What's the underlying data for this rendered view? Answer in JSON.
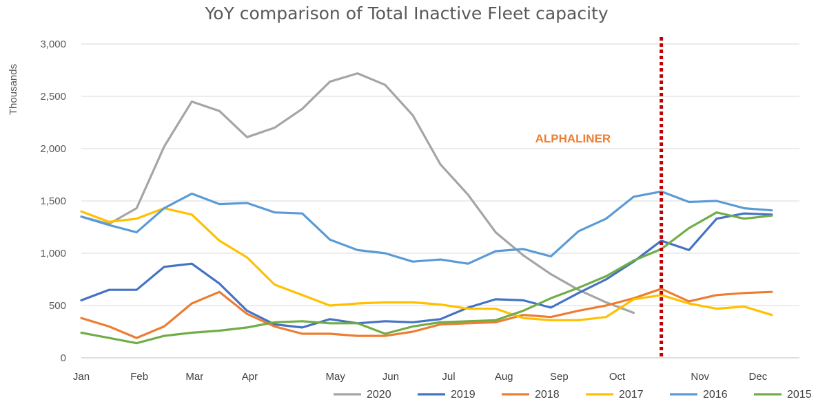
{
  "chart_data": {
    "type": "line",
    "title": "YoY comparison of Total Inactive Fleet capacity",
    "ylabel": "Thousands",
    "xlabel": "",
    "ylim": [
      0,
      3000
    ],
    "yticks": [
      0,
      500,
      1000,
      1500,
      2000,
      2500,
      3000
    ],
    "ytick_labels": [
      "0",
      "500",
      "1,000",
      "1,500",
      "2,000",
      "2,500",
      "3,000"
    ],
    "x_range": [
      1,
      27
    ],
    "month_ticks": [
      {
        "label": "Jan",
        "x": 1
      },
      {
        "label": "Feb",
        "x": 3.1
      },
      {
        "label": "Mar",
        "x": 5.1
      },
      {
        "label": "Apr",
        "x": 7.1
      },
      {
        "label": "May",
        "x": 10.2
      },
      {
        "label": "Jun",
        "x": 12.2
      },
      {
        "label": "Jul",
        "x": 14.3
      },
      {
        "label": "Aug",
        "x": 16.3
      },
      {
        "label": "Sep",
        "x": 18.3
      },
      {
        "label": "Oct",
        "x": 20.4
      },
      {
        "label": "Nov",
        "x": 23.4
      },
      {
        "label": "Dec",
        "x": 25.5
      }
    ],
    "grid": true,
    "legend_position": "bottom",
    "annotation": {
      "text": "ALPHALINER",
      "color": "#ed7d31",
      "x": 18.8,
      "y": 2100
    },
    "marker_line": {
      "x": 22,
      "color": "#c00000",
      "style": "dotted"
    },
    "series": [
      {
        "name": "2020",
        "color": "#a5a5a5",
        "values": [
          1350,
          1280,
          1430,
          2020,
          2450,
          2360,
          2110,
          2200,
          2380,
          2640,
          2720,
          2610,
          2320,
          1850,
          1560,
          1200,
          980,
          800,
          650,
          530,
          430,
          null,
          null,
          null,
          null,
          null,
          null
        ]
      },
      {
        "name": "2019",
        "color": "#4472c4",
        "values": [
          550,
          650,
          650,
          870,
          900,
          710,
          450,
          320,
          290,
          370,
          330,
          350,
          340,
          370,
          480,
          560,
          550,
          480,
          620,
          750,
          920,
          1120,
          1030,
          1330,
          1380,
          1370,
          null
        ]
      },
      {
        "name": "2018",
        "color": "#ed7d31",
        "values": [
          380,
          300,
          190,
          300,
          520,
          630,
          420,
          300,
          230,
          230,
          210,
          210,
          250,
          320,
          330,
          340,
          410,
          390,
          450,
          500,
          570,
          660,
          540,
          600,
          620,
          630,
          null
        ]
      },
      {
        "name": "2017",
        "color": "#ffc000",
        "values": [
          1400,
          1300,
          1330,
          1430,
          1370,
          1120,
          960,
          700,
          600,
          500,
          520,
          530,
          530,
          510,
          470,
          470,
          380,
          360,
          360,
          390,
          560,
          600,
          520,
          470,
          490,
          410,
          null
        ]
      },
      {
        "name": "2016",
        "color": "#5b9bd5",
        "values": [
          1350,
          1270,
          1200,
          1430,
          1570,
          1470,
          1480,
          1390,
          1380,
          1130,
          1030,
          1000,
          920,
          940,
          900,
          1020,
          1040,
          970,
          1210,
          1330,
          1540,
          1590,
          1490,
          1500,
          1430,
          1410,
          null
        ]
      },
      {
        "name": "2015",
        "color": "#70ad47",
        "values": [
          240,
          190,
          140,
          210,
          240,
          260,
          290,
          340,
          350,
          330,
          330,
          230,
          300,
          340,
          350,
          360,
          450,
          570,
          670,
          780,
          930,
          1040,
          1240,
          1390,
          1330,
          1360,
          null
        ]
      }
    ]
  }
}
